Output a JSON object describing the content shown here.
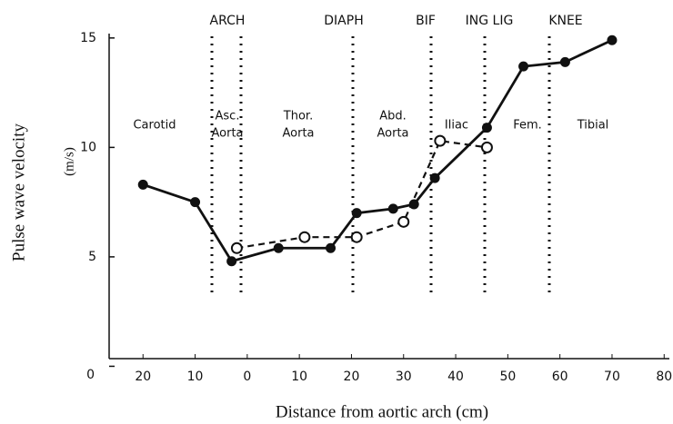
{
  "chart_data": {
    "type": "line",
    "y_label": "Pulse wave velocity",
    "y_unit": "(m/s)",
    "x_label": "Distance from aortic arch (cm)",
    "landmarks": [
      "ARCH",
      "DIAPH",
      "BIF",
      "ING LIG",
      "KNEE"
    ],
    "regions": [
      [
        "Carotid"
      ],
      [
        "Asc.",
        "Aorta"
      ],
      [
        "Thor.",
        "Aorta"
      ],
      [
        "Abd.",
        "Aorta"
      ],
      [
        "Iliac"
      ],
      [
        "Fem."
      ],
      [
        "Tibial"
      ]
    ],
    "xlim": [
      -26.5,
      81
    ],
    "ylim": [
      0.35,
      15.2
    ],
    "xticks": [
      {
        "value": -20,
        "label": "20"
      },
      {
        "value": -10,
        "label": "10"
      },
      0,
      10,
      20,
      30,
      40,
      50,
      60,
      70,
      80
    ],
    "yticks": [
      0,
      5,
      10,
      15
    ],
    "series": [
      {
        "color": "#111",
        "dash": false,
        "x": [
          -20,
          -10,
          -3,
          6,
          16,
          21,
          28,
          32,
          36,
          46,
          53,
          61,
          70
        ],
        "values": [
          8.3,
          7.5,
          4.8,
          5.4,
          5.4,
          7.0,
          7.2,
          7.4,
          8.6,
          10.9,
          13.7,
          13.9,
          14.9
        ]
      },
      {
        "color": "#111",
        "dash": true,
        "x": [
          -2,
          11,
          21,
          30,
          37,
          46
        ],
        "values": [
          5.4,
          5.9,
          5.9,
          6.6,
          10.3,
          10.0
        ]
      }
    ]
  }
}
